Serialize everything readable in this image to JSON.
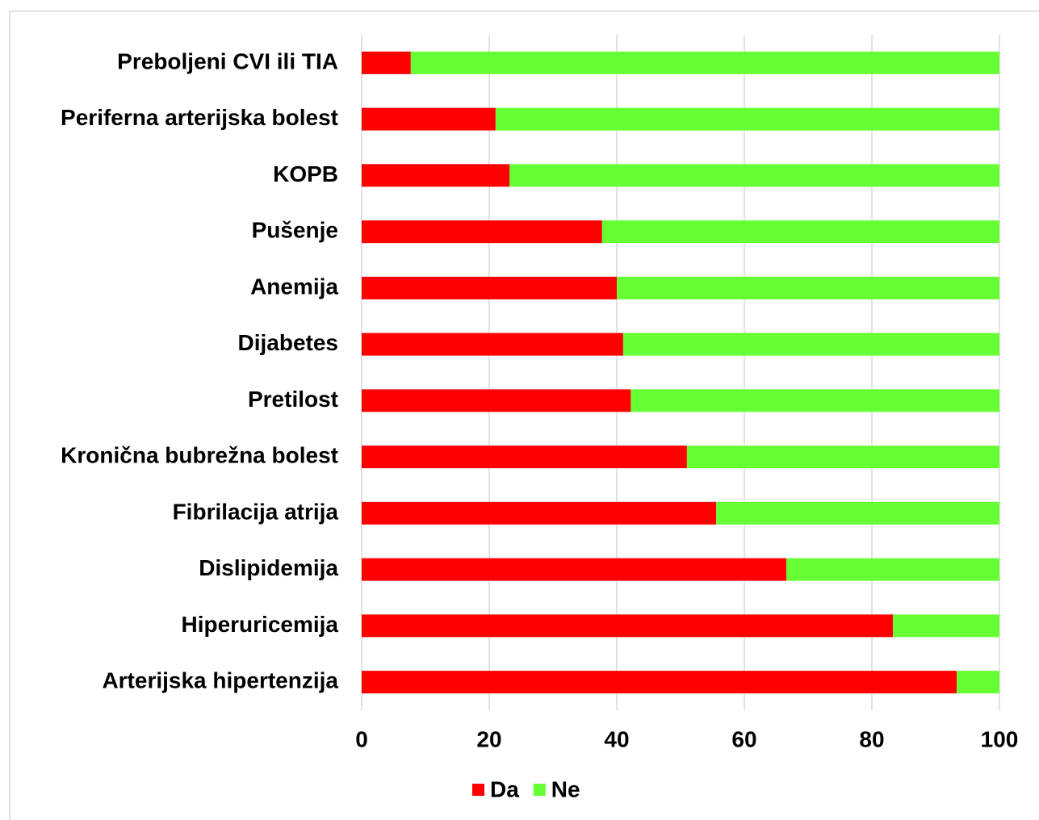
{
  "chart_data": {
    "type": "bar",
    "orientation": "horizontal",
    "stacked": true,
    "categories": [
      "Preboljeni CVI ili TIA",
      "Periferna arterijska bolest",
      "KOPB",
      "Pušenje",
      "Anemija",
      "Dijabetes",
      "Pretilost",
      "Kronična bubrežna bolest",
      "Fibrilacija atrija",
      "Dislipidemija",
      "Hiperuricemija",
      "Arterijska hipertenzija"
    ],
    "series": [
      {
        "name": "Da",
        "color": "#ff0000",
        "values": [
          7.7,
          21.0,
          23.2,
          37.7,
          40.0,
          41.0,
          42.2,
          51.0,
          55.6,
          66.6,
          83.3,
          93.3
        ]
      },
      {
        "name": "Ne",
        "color": "#66ff33",
        "values": [
          92.3,
          79.0,
          76.8,
          62.3,
          60.0,
          59.0,
          57.8,
          49.0,
          44.4,
          33.4,
          16.7,
          6.7
        ]
      }
    ],
    "xlim": [
      0,
      100
    ],
    "xticks": [
      0,
      20,
      40,
      60,
      80,
      100
    ],
    "grid": true,
    "legend": "bottom"
  }
}
